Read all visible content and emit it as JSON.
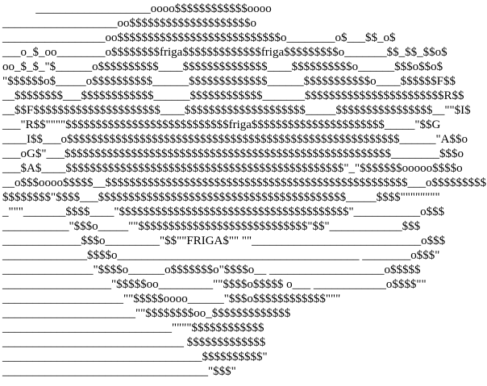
{
  "page": {
    "background_color": "#ffffff",
    "text_color": "#000000",
    "content_type": "ascii-art"
  },
  "ascii_art": {
    "embedded_words": [
      "friga",
      "friga",
      "friga",
      "FRIGA$"
    ],
    "vertical_letters_left": [
      "F",
      "R",
      "I",
      "G",
      "A"
    ],
    "vertical_letters_right": [
      "F",
      "R",
      "I",
      "G",
      "A"
    ],
    "lines": [
      "           ___________________oooo$$$$$$$$$$$$oooo",
      "___________________oo$$$$$$$$$$$$$$$$$$$$o",
      "_________________oo$$$$$$$$$$$$$$$$$$$$$$$$$$$o________o$___$$_o$",
      "___o_$_oo________o$$$$$$$$friga$$$$$$$$$$$$$friga$$$$$$$$$o_______$$_$$_$$o$",
      "oo_$_$_\"$______o$$$$$$$$$$____$$$$$$$$$$$$$$____$$$$$$$$$$o______$$$o$$o$",
      "\"$$$$$$o$_____o$$$$$$$$$$______$$$$$$$$$$$$$______$$$$$$$$$$$o____$$$$$$F$$",
      "__$$$$$$$$___$$$$$$$$$$$$______$$$$$$$$$$$$_______$$$$$$$$$$$$$$$$$$$$$$$R$$",
      "__$$F$$$$$$$$$$$$$$$$$$$$$____$$$$$$$$$$$$$$$$$$$$_____$$$$$$$$$$$$$$$$__\"\"$I$",
      "___\"R$$\"\"\"\"$$$$$$$$$$$$$$$$$$$$$$$$$$$friga$$$$$$$$$$$$$$$$$$$$$$_____\"$$G",
      "____I$$___o$$$$$$$$$$$$$$$$$$$$$$$$$$$$$$$$$$$$$$$$$$$$$$$$$$$$$$$______\"A$$o",
      "___oG$\"___$$$$$$$$$$$$$$$$$$$$$$$$$$$$$$$$$$$$$$$$$$$$$$$$$$$$$$________$$$o",
      "___$A$____$$$$$$$$$$$$$$$$$$$$$$$$$$$$$$$$$$$$$$$$$$$$$$\"_\"$$$$$$$ooooo$$$$o",
      "__o$$$oooo$$$$$__$$$$$$$$$$$$$$$$$$$$$$$$$$$$$$$$$$$$$$$$$$$$$$$$$$___o$$$$$$$$$",
      "$$$$$$$$\"$$$$___$$$$$$$$$$$$$$$$$$$$$$$$$$$$$$$$$$$$$$$$$_____$$$$\"\"\"\"\"\"\"\"",
      "_\"\"\"_______$$$$____\"$$$$$$$$$$$$$$$$$$$$$$$$$$$$$$$$$$$$$$\"___________o$$$",
      "___________\"$$$o_____\"\"$$$$$$$$$$$$$$$$$$$$$$$$$$$$\"$$\"____________$$$",
      "_____________$$$o_________\"$$\"\"FRIGA$\"\" \"\"____________________________o$$$",
      "______________$$$$o________________________________________ ________o$$$\"",
      "_______________\"$$$$o______o$$$$$$$o\"$$$$o__ ___________________o$$$$$",
      "__________________\"$$$$$oo_________\"\"$$$$o$$$$$ o___ ____________o$$$$\"\"",
      "____________________\"\"$$$$$oooo______\"$$$o$$$$$$$$$$$$\"\"\"",
      "______________________\"\"$$$$$$$$oo_$$$$$$$$$$$$$",
      "____________________________\"\"\"\"$$$$$$$$$$$$",
      "______________________________ $$$$$$$$$$$$$",
      "_________________________________$$$$$$$$$$\"",
      "__________________________________\"$$$\""
    ]
  }
}
